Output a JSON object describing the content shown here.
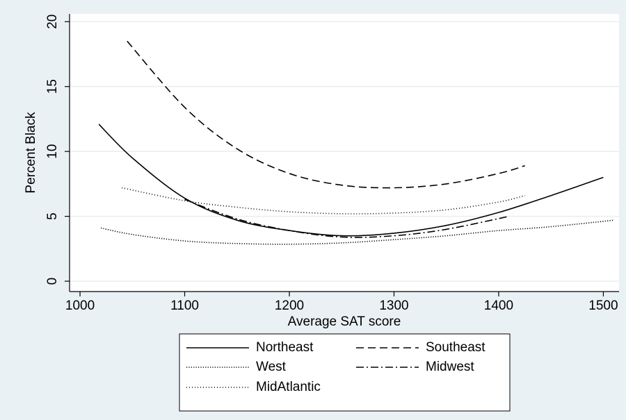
{
  "chart_data": {
    "type": "line",
    "title": "",
    "xlabel": "Average SAT score",
    "ylabel": "Percent Black",
    "xlim": [
      990,
      1515
    ],
    "ylim": [
      -0.8,
      20.6
    ],
    "x_ticks": [
      1000,
      1100,
      1200,
      1300,
      1400,
      1500
    ],
    "y_ticks": [
      0,
      5,
      10,
      15,
      20
    ],
    "grid": true,
    "legend_position": "bottom-center",
    "series": [
      {
        "name": "Northeast",
        "style": "solid",
        "x": [
          1018,
          1050,
          1100,
          1150,
          1200,
          1250,
          1300,
          1350,
          1400,
          1450,
          1500
        ],
        "y": [
          12.1,
          9.5,
          6.4,
          4.7,
          3.9,
          3.5,
          3.7,
          4.3,
          5.3,
          6.6,
          8.0
        ]
      },
      {
        "name": "Southeast",
        "style": "dashed",
        "x": [
          1045,
          1100,
          1150,
          1200,
          1250,
          1300,
          1350,
          1400,
          1425
        ],
        "y": [
          18.5,
          13.4,
          10.2,
          8.3,
          7.4,
          7.2,
          7.5,
          8.3,
          8.9
        ]
      },
      {
        "name": "West",
        "style": "dotted",
        "x": [
          1020,
          1050,
          1100,
          1150,
          1200,
          1250,
          1300,
          1350,
          1400,
          1450,
          1510
        ],
        "y": [
          4.1,
          3.6,
          3.1,
          2.9,
          2.85,
          2.95,
          3.2,
          3.5,
          3.9,
          4.2,
          4.7
        ]
      },
      {
        "name": "Midwest",
        "style": "dashdot",
        "x": [
          1100,
          1150,
          1200,
          1250,
          1300,
          1350,
          1410
        ],
        "y": [
          6.3,
          4.8,
          3.9,
          3.4,
          3.5,
          4.0,
          5.0
        ]
      },
      {
        "name": "MidAtlantic",
        "style": "fine-dotted",
        "x": [
          1040,
          1100,
          1150,
          1200,
          1250,
          1300,
          1350,
          1400,
          1425
        ],
        "y": [
          7.2,
          6.2,
          5.7,
          5.35,
          5.2,
          5.25,
          5.5,
          6.1,
          6.6
        ]
      }
    ],
    "colors": {
      "outer_background": "#eaf1f5",
      "plot_background": "#ffffff",
      "gridline": "#e8eef2",
      "line": "#000000"
    }
  }
}
